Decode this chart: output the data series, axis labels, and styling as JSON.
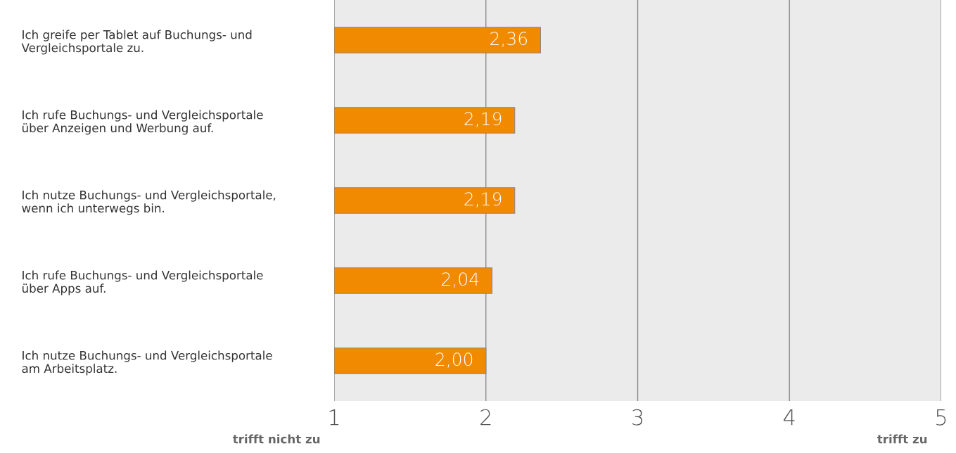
{
  "chart_data": {
    "type": "bar",
    "orientation": "horizontal",
    "categories": [
      "Ich greife per Tablet auf Buchungs- und\nVergleichsportale zu.",
      "Ich rufe Buchungs- und Vergleichsportale\nüber Anzeigen und Werbung auf.",
      "Ich nutze Buchungs- und Vergleichsportale,\nwenn ich unterwegs bin.",
      "Ich rufe Buchungs- und Vergleichsportale\nüber Apps auf.",
      "Ich nutze Buchungs- und Vergleichsportale\nam Arbeitsplatz."
    ],
    "values": [
      2.36,
      2.19,
      2.19,
      2.04,
      2.0
    ],
    "value_labels": [
      "2,36",
      "2,19",
      "2,19",
      "2,04",
      "2,00"
    ],
    "color": "#f28a00",
    "xlim": [
      1,
      5
    ],
    "xticks": [
      1,
      2,
      3,
      4,
      5
    ],
    "grid": "x",
    "annotations": [
      "trifft nicht zu",
      "trifft zu"
    ]
  }
}
